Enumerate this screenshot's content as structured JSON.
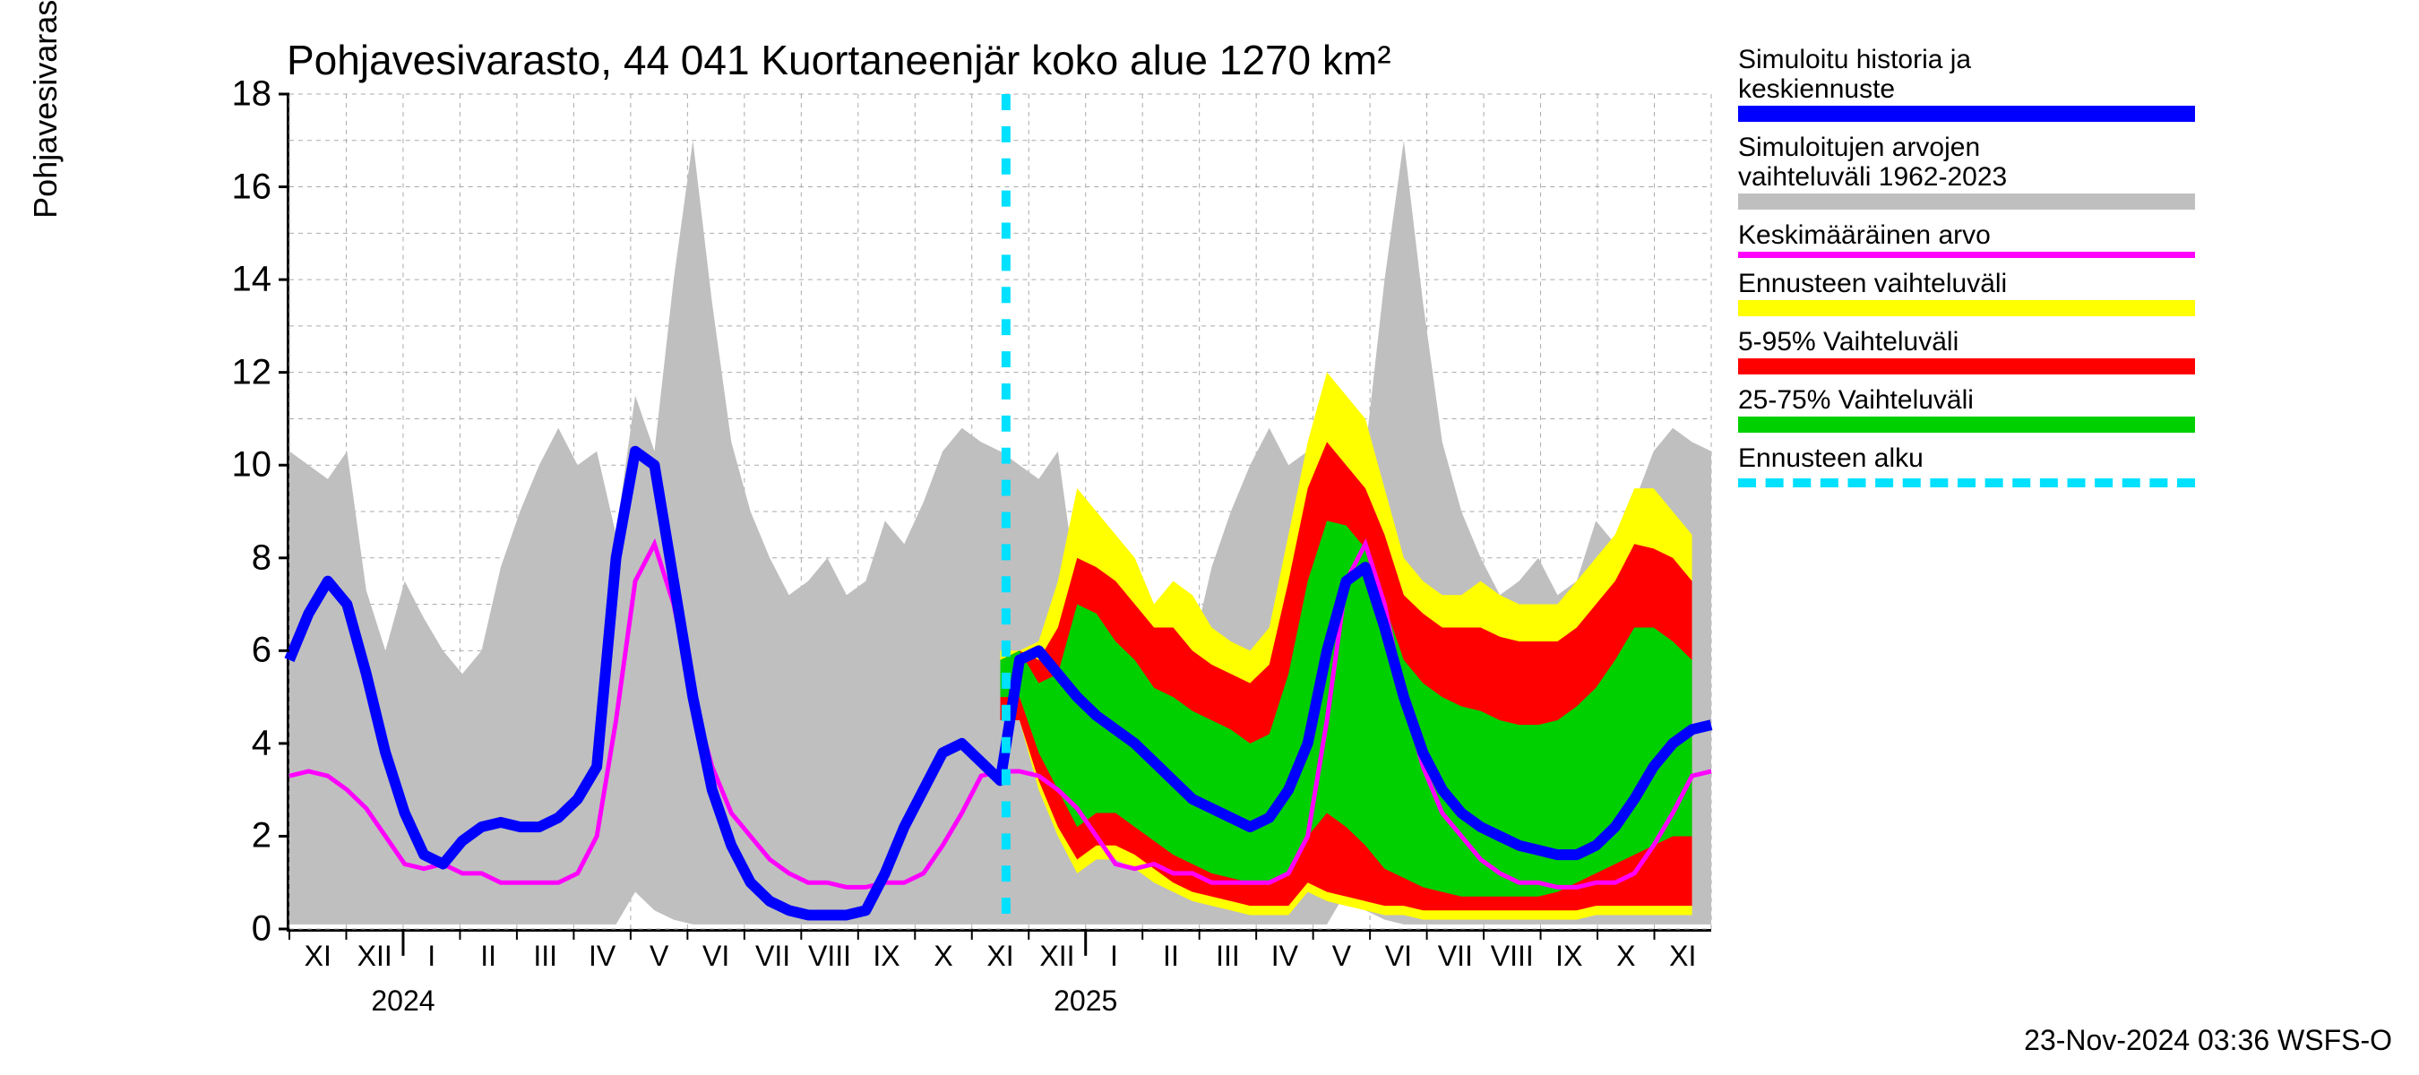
{
  "title": "Pohjavesivarasto, 44 041 Kuortaneenjär koko alue 1270 km²",
  "y_axis_label": "Pohjavesivarasto / Groundwater storage    mm",
  "footer": "23-Nov-2024 03:36 WSFS-O",
  "ylim": [
    0,
    18
  ],
  "yticks": [
    0,
    2,
    4,
    6,
    8,
    10,
    12,
    14,
    16,
    18
  ],
  "x_months": [
    "XI",
    "XII",
    "I",
    "II",
    "III",
    "IV",
    "V",
    "VI",
    "VII",
    "VIII",
    "IX",
    "X",
    "XI",
    "XII",
    "I",
    "II",
    "III",
    "IV",
    "V",
    "VI",
    "VII",
    "VIII",
    "IX",
    "X",
    "XI"
  ],
  "year_labels": [
    {
      "x_idx": 2.0,
      "text": "2024"
    },
    {
      "x_idx": 14.0,
      "text": "2025"
    }
  ],
  "legend": [
    {
      "label_lines": [
        "Simuloitu historia ja",
        "keskiennuste"
      ],
      "color": "#0000ff",
      "height": 18
    },
    {
      "label_lines": [
        "Simuloitujen arvojen",
        "vaihteluväli 1962-2023"
      ],
      "color": "#bfbfbf",
      "height": 18
    },
    {
      "label_lines": [
        "Keskimääräinen arvo"
      ],
      "color": "#ff00ff",
      "height": 7
    },
    {
      "label_lines": [
        "Ennusteen vaihteluväli"
      ],
      "color": "#ffff00",
      "height": 18
    },
    {
      "label_lines": [
        "5-95% Vaihteluväli"
      ],
      "color": "#ff0000",
      "height": 18
    },
    {
      "label_lines": [
        "25-75% Vaihteluväli"
      ],
      "color": "#00d000",
      "height": 18
    },
    {
      "label_lines": [
        "Ennusteen alku"
      ],
      "dash": true
    }
  ],
  "colors": {
    "grey_band": "#bfbfbf",
    "yellow_band": "#ffff00",
    "red_band": "#ff0000",
    "green_band": "#00d000",
    "blue_line": "#0000ff",
    "magenta_line": "#ff00ff",
    "forecast_line": "#00e0ff",
    "grid": "#888888",
    "background": "#ffffff",
    "text": "#000000"
  },
  "forecast_start_idx": 12.6,
  "chart": {
    "blue_line_width": 12,
    "magenta_line_width": 5,
    "forecast_dash": "18 18",
    "forecast_width": 10,
    "grey_upper": [
      10.3,
      10.0,
      9.7,
      10.3,
      7.3,
      6.0,
      7.5,
      6.7,
      6.0,
      5.5,
      6.0,
      7.8,
      9.0,
      10.0,
      10.8,
      10.0,
      10.3,
      8.5,
      11.5,
      10.3,
      14.0,
      17.0,
      13.5,
      10.5,
      9.0,
      8.0,
      7.2,
      7.5,
      8.0,
      7.2,
      7.5,
      8.8,
      8.3,
      9.2,
      10.3,
      10.8,
      10.5,
      10.3,
      10.0,
      9.7,
      10.3,
      7.3,
      6.0,
      7.5,
      6.7,
      6.0,
      5.5,
      6.0,
      7.8,
      9.0,
      10.0,
      10.8,
      10.0,
      10.3,
      8.5,
      11.5,
      10.3,
      14.0,
      17.0,
      13.5,
      10.5,
      9.0,
      8.0,
      7.2,
      7.5,
      8.0,
      7.2,
      7.5,
      8.8,
      8.3,
      9.2,
      10.3,
      10.8,
      10.5,
      10.3
    ],
    "grey_lower": [
      0.1,
      0.1,
      0.1,
      0.1,
      0.1,
      0.1,
      0.1,
      0.1,
      0.1,
      0.1,
      0.1,
      0.1,
      0.1,
      0.1,
      0.1,
      0.1,
      0.1,
      0.1,
      0.8,
      0.4,
      0.2,
      0.1,
      0.1,
      0.1,
      0.1,
      0.1,
      0.1,
      0.1,
      0.1,
      0.1,
      0.1,
      0.1,
      0.1,
      0.1,
      0.1,
      0.1,
      0.1,
      0.1,
      0.1,
      0.1,
      0.1,
      0.1,
      0.1,
      0.1,
      0.1,
      0.1,
      0.1,
      0.1,
      0.1,
      0.1,
      0.1,
      0.1,
      0.1,
      0.1,
      0.1,
      0.8,
      0.4,
      0.2,
      0.1,
      0.1,
      0.1,
      0.1,
      0.1,
      0.1,
      0.1,
      0.1,
      0.1,
      0.1,
      0.1,
      0.1,
      0.1,
      0.1,
      0.1,
      0.1,
      0.1
    ],
    "magenta": [
      3.3,
      3.4,
      3.3,
      3.0,
      2.6,
      2.0,
      1.4,
      1.3,
      1.4,
      1.2,
      1.2,
      1.0,
      1.0,
      1.0,
      1.0,
      1.2,
      2.0,
      4.5,
      7.5,
      8.3,
      7.0,
      5.0,
      3.5,
      2.5,
      2.0,
      1.5,
      1.2,
      1.0,
      1.0,
      0.9,
      0.9,
      1.0,
      1.0,
      1.2,
      1.8,
      2.5,
      3.3,
      3.4,
      3.4,
      3.3,
      3.0,
      2.6,
      2.0,
      1.4,
      1.3,
      1.4,
      1.2,
      1.2,
      1.0,
      1.0,
      1.0,
      1.0,
      1.2,
      2.0,
      4.5,
      7.5,
      8.3,
      7.0,
      5.0,
      3.5,
      2.5,
      2.0,
      1.5,
      1.2,
      1.0,
      1.0,
      0.9,
      0.9,
      1.0,
      1.0,
      1.2,
      1.8,
      2.5,
      3.3,
      3.4
    ],
    "blue": [
      5.8,
      6.8,
      7.5,
      7.0,
      5.5,
      3.8,
      2.5,
      1.6,
      1.4,
      1.9,
      2.2,
      2.3,
      2.2,
      2.2,
      2.4,
      2.8,
      3.5,
      8.0,
      10.3,
      10.0,
      7.5,
      5.0,
      3.0,
      1.8,
      1.0,
      0.6,
      0.4,
      0.3,
      0.3,
      0.3,
      0.4,
      1.2,
      2.2,
      3.0,
      3.8,
      4.0,
      3.6,
      3.2,
      5.8,
      6.0,
      5.5,
      5.0,
      4.6,
      4.3,
      4.0,
      3.6,
      3.2,
      2.8,
      2.6,
      2.4,
      2.2,
      2.4,
      3.0,
      4.0,
      6.0,
      7.5,
      7.8,
      6.5,
      5.0,
      3.8,
      3.0,
      2.5,
      2.2,
      2.0,
      1.8,
      1.7,
      1.6,
      1.6,
      1.8,
      2.2,
      2.8,
      3.5,
      4.0,
      4.3,
      4.4
    ],
    "yellow_upper": [
      6.0,
      6.0,
      6.2,
      7.5,
      9.5,
      9.0,
      8.5,
      8.0,
      7.0,
      7.5,
      7.2,
      6.5,
      6.2,
      6.0,
      6.5,
      8.5,
      10.5,
      12.0,
      11.5,
      11.0,
      9.5,
      8.0,
      7.5,
      7.2,
      7.2,
      7.5,
      7.2,
      7.0,
      7.0,
      7.0,
      7.5,
      8.0,
      8.5,
      9.5,
      9.5,
      9.0,
      8.5
    ],
    "yellow_lower": [
      4.5,
      4.5,
      3.0,
      2.0,
      1.2,
      1.5,
      1.5,
      1.3,
      1.0,
      0.8,
      0.6,
      0.5,
      0.4,
      0.3,
      0.3,
      0.3,
      0.8,
      0.6,
      0.5,
      0.4,
      0.3,
      0.3,
      0.2,
      0.2,
      0.2,
      0.2,
      0.2,
      0.2,
      0.2,
      0.2,
      0.2,
      0.3,
      0.3,
      0.3,
      0.3,
      0.3,
      0.3
    ],
    "red_upper": [
      5.8,
      6.0,
      5.8,
      6.5,
      8.0,
      7.8,
      7.5,
      7.0,
      6.5,
      6.5,
      6.0,
      5.7,
      5.5,
      5.3,
      5.7,
      7.5,
      9.5,
      10.5,
      10.0,
      9.5,
      8.5,
      7.2,
      6.8,
      6.5,
      6.5,
      6.5,
      6.3,
      6.2,
      6.2,
      6.2,
      6.5,
      7.0,
      7.5,
      8.3,
      8.2,
      8.0,
      7.5
    ],
    "red_lower": [
      4.5,
      4.5,
      3.2,
      2.2,
      1.5,
      1.8,
      1.8,
      1.6,
      1.3,
      1.0,
      0.8,
      0.7,
      0.6,
      0.5,
      0.5,
      0.5,
      1.0,
      0.8,
      0.7,
      0.6,
      0.5,
      0.5,
      0.4,
      0.4,
      0.4,
      0.4,
      0.4,
      0.4,
      0.4,
      0.4,
      0.4,
      0.5,
      0.5,
      0.5,
      0.5,
      0.5,
      0.5
    ],
    "green_upper": [
      5.8,
      6.0,
      5.3,
      5.5,
      7.0,
      6.8,
      6.2,
      5.8,
      5.2,
      5.0,
      4.7,
      4.5,
      4.3,
      4.0,
      4.2,
      5.5,
      7.5,
      8.8,
      8.7,
      8.2,
      7.0,
      5.8,
      5.3,
      5.0,
      4.8,
      4.7,
      4.5,
      4.4,
      4.4,
      4.5,
      4.8,
      5.2,
      5.8,
      6.5,
      6.5,
      6.2,
      5.8
    ],
    "green_lower": [
      5.0,
      5.0,
      3.8,
      3.0,
      2.2,
      2.5,
      2.5,
      2.2,
      1.9,
      1.6,
      1.4,
      1.2,
      1.1,
      1.0,
      1.0,
      1.2,
      2.0,
      2.5,
      2.2,
      1.8,
      1.3,
      1.1,
      0.9,
      0.8,
      0.7,
      0.7,
      0.7,
      0.7,
      0.7,
      0.8,
      1.0,
      1.2,
      1.4,
      1.6,
      1.8,
      2.0,
      2.0
    ]
  }
}
